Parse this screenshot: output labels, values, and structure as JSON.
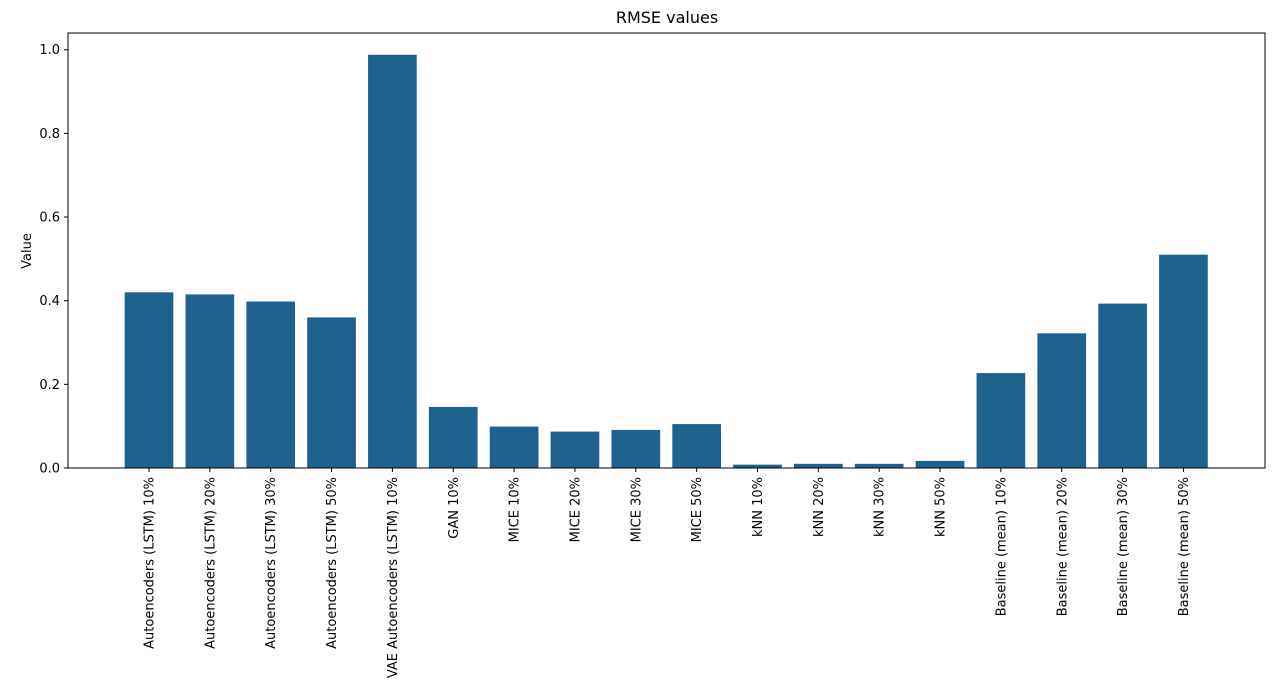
{
  "chart_data": {
    "type": "bar",
    "title": "RMSE values",
    "xlabel": "",
    "ylabel": "Value",
    "ylim": [
      0,
      1.04
    ],
    "yticks": [
      "0.0",
      "0.2",
      "0.4",
      "0.6",
      "0.8",
      "1.0"
    ],
    "bar_color": "#1f628e",
    "grid": false,
    "categories": [
      "Autoencoders (LSTM) 10%",
      "Autoencoders (LSTM) 20%",
      "Autoencoders (LSTM) 30%",
      "Autoencoders (LSTM) 50%",
      "VAE Autoencoders (LSTM) 10%",
      "GAN 10%",
      "MICE 10%",
      "MICE 20%",
      "MICE 30%",
      "MICE 50%",
      "kNN 10%",
      "kNN 20%",
      "kNN 30%",
      "kNN 50%",
      "Baseline (mean) 10%",
      "Baseline (mean) 20%",
      "Baseline (mean) 30%",
      "Baseline (mean) 50%"
    ],
    "values": [
      0.42,
      0.415,
      0.398,
      0.36,
      0.988,
      0.146,
      0.099,
      0.087,
      0.091,
      0.105,
      0.008,
      0.01,
      0.01,
      0.017,
      0.227,
      0.322,
      0.393,
      0.51
    ]
  }
}
